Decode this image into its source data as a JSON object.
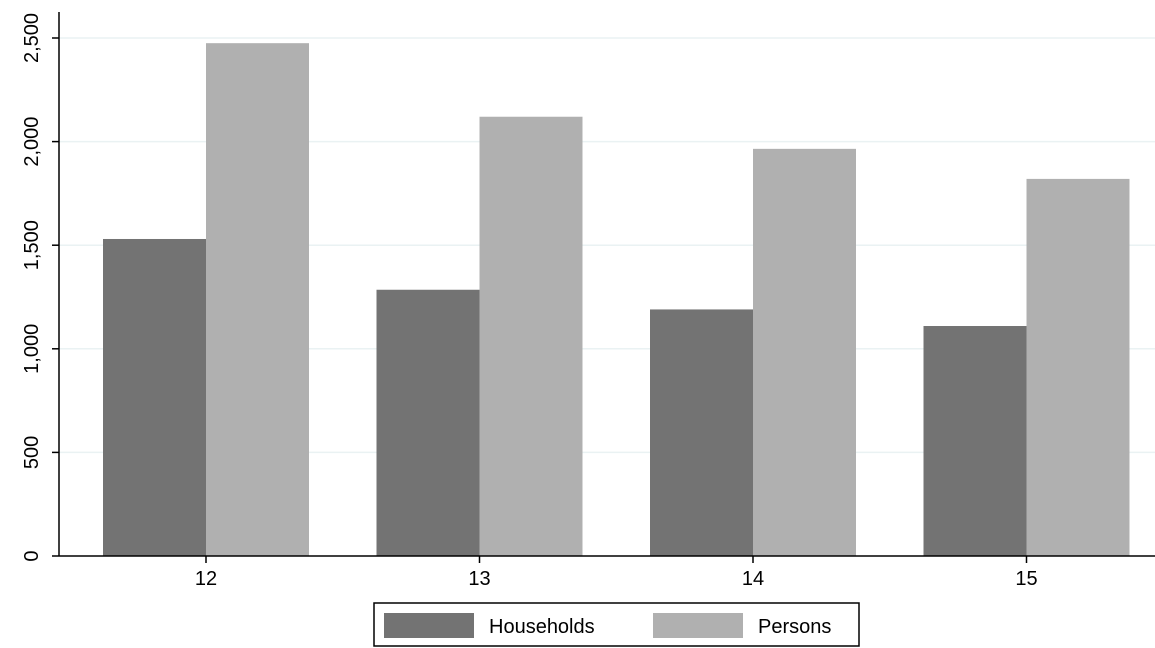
{
  "chart_data": {
    "type": "bar",
    "title": "",
    "xlabel": "",
    "ylabel": "",
    "categories": [
      "12",
      "13",
      "14",
      "15"
    ],
    "series": [
      {
        "name": "Households",
        "values": [
          1530,
          1285,
          1190,
          1110
        ],
        "color": "#737373"
      },
      {
        "name": "Persons",
        "values": [
          2475,
          2120,
          1965,
          1820
        ],
        "color": "#b0b0b0"
      }
    ],
    "ylim": [
      0,
      2500
    ],
    "yticks": [
      0,
      500,
      1000,
      1500,
      2000,
      2500
    ],
    "ytick_labels": [
      "0",
      "500",
      "1,000",
      "1,500",
      "2,000",
      "2,500"
    ],
    "grid": true,
    "grid_color": "#eaf2f3",
    "legend_position": "bottom-center"
  }
}
